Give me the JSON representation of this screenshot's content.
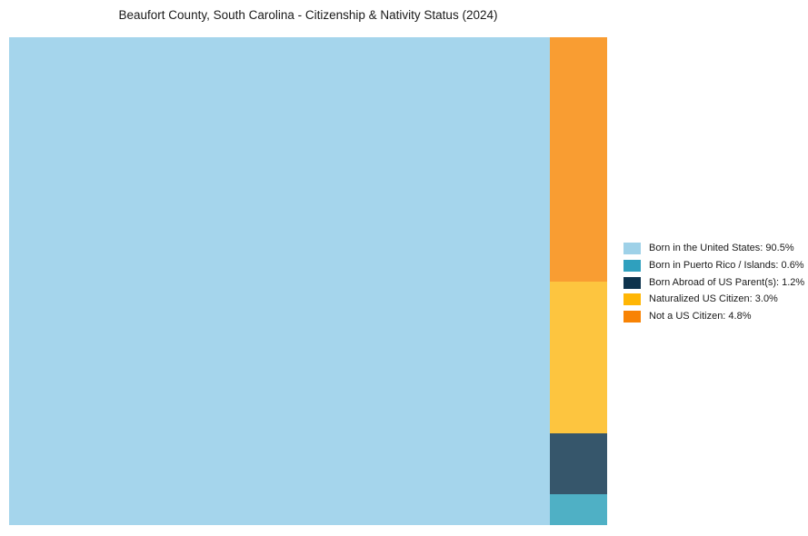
{
  "chart": {
    "title": "Beaufort County, South Carolina - Citizenship & Nativity Status (2024)"
  },
  "chart_data": {
    "type": "treemap",
    "title": "Beaufort County, South Carolina - Citizenship & Nativity Status (2024)",
    "categories": [
      "Born in the United States",
      "Born in Puerto Rico / Islands",
      "Born Abroad of US Parent(s)",
      "Naturalized US Citizen",
      "Not a US Citizen"
    ],
    "values": [
      90.5,
      0.6,
      1.2,
      3.0,
      4.8
    ],
    "unit": "%",
    "block_colors": [
      "#A5D5EC",
      "#4FB0C5",
      "#36566B",
      "#FDC53F",
      "#F99D32"
    ],
    "legend_colors": [
      "#9ED1E8",
      "#2FA0BE",
      "#0D334D",
      "#FFB605",
      "#F88304"
    ],
    "legend_position": "right",
    "layout": "slice-and-dice: main block (index 0) fills left by value share of width; remaining categories stacked in right column top-to-bottom in order indices 4,3,2,1 proportional to value"
  },
  "legend": {
    "items": [
      {
        "label": "Born in the United States: 90.5%"
      },
      {
        "label": "Born in Puerto Rico / Islands: 0.6%"
      },
      {
        "label": "Born Abroad of US Parent(s): 1.2%"
      },
      {
        "label": "Naturalized US Citizen: 3.0%"
      },
      {
        "label": "Not a US Citizen: 4.8%"
      }
    ]
  }
}
